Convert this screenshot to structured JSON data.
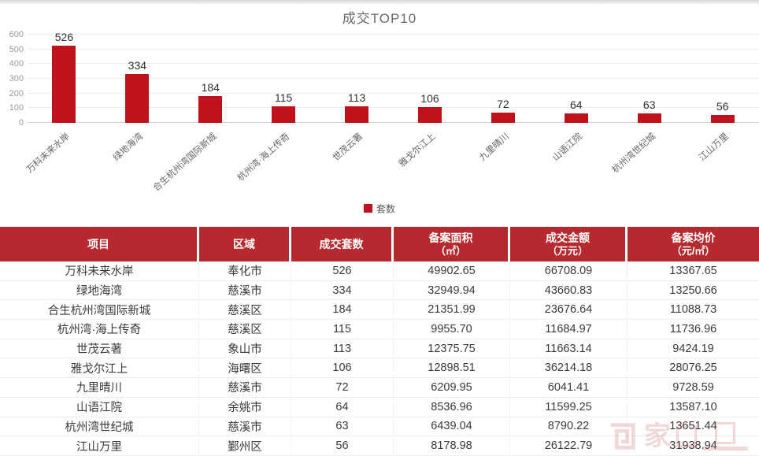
{
  "chart": {
    "title": "成交TOP10",
    "legend": {
      "label": "套数",
      "color": "#c0121b"
    }
  },
  "chart_data": {
    "type": "bar",
    "title": "成交TOP10",
    "series_name": "套数",
    "categories": [
      "万科未来水岸",
      "绿地海湾",
      "合生杭州湾国际新城",
      "杭州湾·海上传奇",
      "世茂云著",
      "雅戈尔江上",
      "九里晴川",
      "山语江院",
      "杭州湾世纪城",
      "江山万里"
    ],
    "values": [
      526,
      334,
      184,
      115,
      113,
      106,
      72,
      64,
      63,
      56
    ],
    "ylim": [
      0,
      600
    ],
    "yticks": [
      0,
      100,
      200,
      300,
      400,
      500,
      600
    ],
    "bar_color": "#c0121b",
    "grid": true,
    "legend_position": "bottom"
  },
  "table": {
    "columns": [
      {
        "label": "项目",
        "sub": ""
      },
      {
        "label": "区域",
        "sub": ""
      },
      {
        "label": "成交套数",
        "sub": ""
      },
      {
        "label": "备案面积",
        "sub": "（㎡）"
      },
      {
        "label": "成交金额",
        "sub": "（万元）"
      },
      {
        "label": "备案均价",
        "sub": "（元/㎡）"
      }
    ],
    "rows": [
      [
        "万科未来水岸",
        "奉化市",
        "526",
        "49902.65",
        "66708.09",
        "13367.65"
      ],
      [
        "绿地海湾",
        "慈溪市",
        "334",
        "32949.94",
        "43660.83",
        "13250.66"
      ],
      [
        "合生杭州湾国际新城",
        "慈溪区",
        "184",
        "21351.99",
        "23676.64",
        "11088.73"
      ],
      [
        "杭州湾·海上传奇",
        "慈溪区",
        "115",
        "9955.70",
        "11684.97",
        "11736.96"
      ],
      [
        "世茂云著",
        "象山市",
        "113",
        "12375.75",
        "11663.14",
        "9424.19"
      ],
      [
        "雅戈尔江上",
        "海曙区",
        "106",
        "12898.51",
        "36214.18",
        "28076.25"
      ],
      [
        "九里晴川",
        "慈溪市",
        "72",
        "6209.95",
        "6041.41",
        "9728.59"
      ],
      [
        "山语江院",
        "余姚市",
        "64",
        "8536.96",
        "11599.25",
        "13587.10"
      ],
      [
        "杭州湾世纪城",
        "慈溪市",
        "63",
        "6439.04",
        "8790.22",
        "13651.44"
      ],
      [
        "江山万里",
        "鄞州区",
        "56",
        "8178.98",
        "26122.79",
        "31938.94"
      ]
    ]
  },
  "watermark": {
    "char": "家"
  }
}
